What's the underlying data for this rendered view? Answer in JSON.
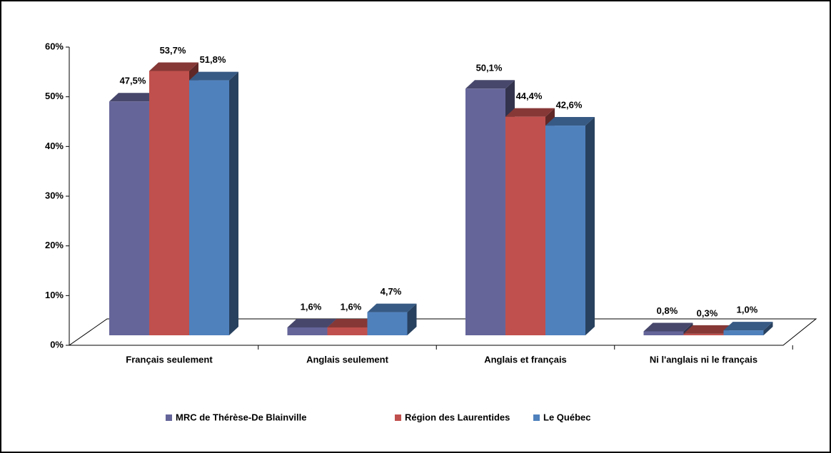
{
  "chart_data": {
    "type": "bar3d",
    "categories": [
      "Français seulement",
      "Anglais seulement",
      "Anglais et français",
      "Ni l'anglais ni le français"
    ],
    "series": [
      {
        "name": "MRC de Thérèse-De Blainville",
        "color": "#65659a",
        "values": [
          47.5,
          1.6,
          50.1,
          0.8
        ],
        "value_labels": [
          "47,5%",
          "1,6%",
          "50,1%",
          "0,8%"
        ]
      },
      {
        "name": "Région des Laurentides",
        "color": "#c0504d",
        "values": [
          53.7,
          1.6,
          44.4,
          0.3
        ],
        "value_labels": [
          "53,7%",
          "1,6%",
          "44,4%",
          "0,3%"
        ]
      },
      {
        "name": "Le Québec",
        "color": "#4f81bd",
        "values": [
          51.8,
          4.7,
          42.6,
          1.0
        ],
        "value_labels": [
          "51,8%",
          "4,7%",
          "42,6%",
          "1,0%"
        ]
      }
    ],
    "ylim": [
      0,
      60
    ],
    "yticks": [
      {
        "value": 0,
        "label": "0%"
      },
      {
        "value": 10,
        "label": "10%"
      },
      {
        "value": 20,
        "label": "20%"
      },
      {
        "value": 30,
        "label": "30%"
      },
      {
        "value": 40,
        "label": "40%"
      },
      {
        "value": 50,
        "label": "50%"
      },
      {
        "value": 60,
        "label": "60%"
      }
    ],
    "legend": "bottom"
  }
}
